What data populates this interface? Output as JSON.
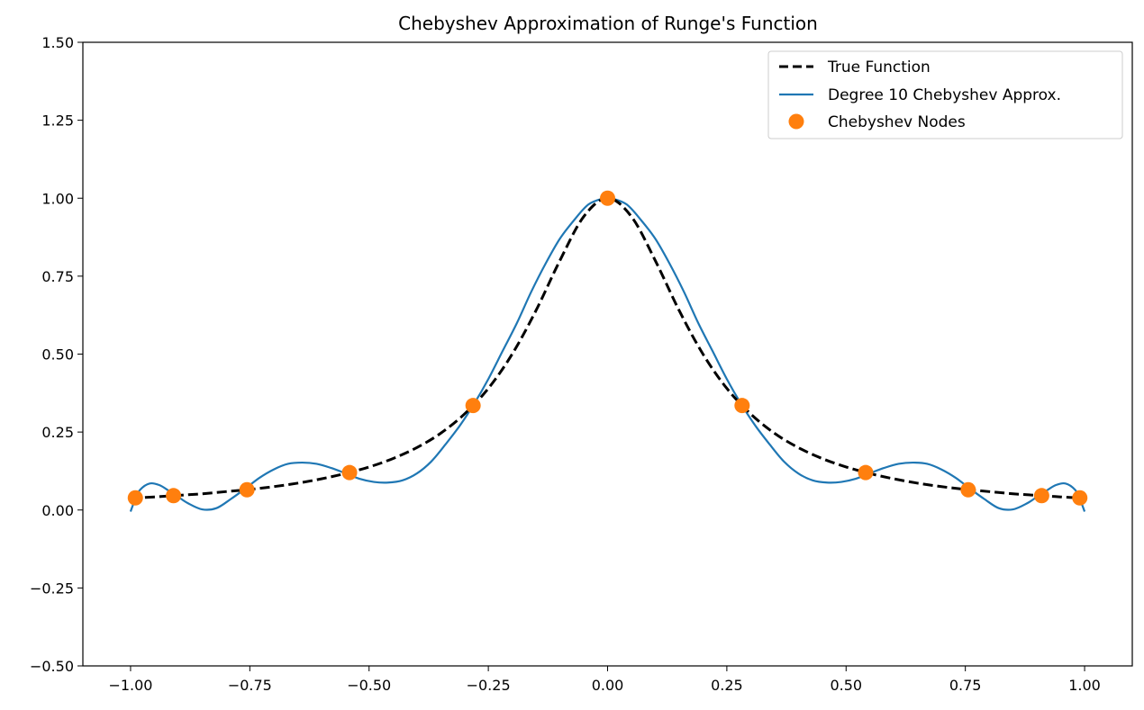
{
  "chart_data": {
    "type": "line",
    "title": "Chebyshev Approximation of Runge's Function",
    "xlabel": "",
    "ylabel": "",
    "xlim": [
      -1.1,
      1.1
    ],
    "ylim": [
      -0.5,
      1.5
    ],
    "xticks": [
      -1.0,
      -0.75,
      -0.5,
      -0.25,
      0.0,
      0.25,
      0.5,
      0.75,
      1.0
    ],
    "xtick_labels": [
      "−1.00",
      "−0.75",
      "−0.50",
      "−0.25",
      "0.00",
      "0.25",
      "0.50",
      "0.75",
      "1.00"
    ],
    "yticks": [
      -0.5,
      -0.25,
      0.0,
      0.25,
      0.5,
      0.75,
      1.0,
      1.25,
      1.5
    ],
    "ytick_labels": [
      "−0.50",
      "−0.25",
      "0.00",
      "0.25",
      "0.50",
      "0.75",
      "1.00",
      "1.25",
      "1.50"
    ],
    "grid": false,
    "legend_position": "top-right",
    "series": [
      {
        "name": "True Function",
        "kind": "line",
        "style": "dashed",
        "color": "#000000",
        "x": [
          -1.0,
          -0.95,
          -0.9,
          -0.85,
          -0.8,
          -0.75,
          -0.7,
          -0.65,
          -0.6,
          -0.55,
          -0.5,
          -0.45,
          -0.4,
          -0.35,
          -0.3,
          -0.25,
          -0.2,
          -0.15,
          -0.1,
          -0.05,
          0.0,
          0.05,
          0.1,
          0.15,
          0.2,
          0.25,
          0.3,
          0.35,
          0.4,
          0.45,
          0.5,
          0.55,
          0.6,
          0.65,
          0.7,
          0.75,
          0.8,
          0.85,
          0.9,
          0.95,
          1.0
        ],
        "y": [
          0.038,
          0.042,
          0.047,
          0.052,
          0.059,
          0.066,
          0.075,
          0.086,
          0.1,
          0.117,
          0.138,
          0.165,
          0.2,
          0.246,
          0.308,
          0.39,
          0.5,
          0.64,
          0.8,
          0.941,
          1.0,
          0.941,
          0.8,
          0.64,
          0.5,
          0.39,
          0.308,
          0.246,
          0.2,
          0.165,
          0.138,
          0.117,
          0.1,
          0.086,
          0.075,
          0.066,
          0.059,
          0.052,
          0.047,
          0.042,
          0.038
        ]
      },
      {
        "name": "Degree 10 Chebyshev Approx.",
        "kind": "line",
        "style": "solid",
        "color": "#1f77b4",
        "x": [
          -1.0,
          -0.99,
          -0.98,
          -0.96,
          -0.94,
          -0.92,
          -0.9,
          -0.88,
          -0.85,
          -0.82,
          -0.79,
          -0.76,
          -0.73,
          -0.7,
          -0.67,
          -0.64,
          -0.61,
          -0.58,
          -0.55,
          -0.52,
          -0.49,
          -0.46,
          -0.43,
          -0.4,
          -0.37,
          -0.34,
          -0.31,
          -0.28,
          -0.25,
          -0.22,
          -0.19,
          -0.16,
          -0.13,
          -0.1,
          -0.07,
          -0.04,
          -0.01,
          0.0,
          0.01,
          0.04,
          0.07,
          0.1,
          0.13,
          0.16,
          0.19,
          0.22,
          0.25,
          0.28,
          0.31,
          0.34,
          0.37,
          0.4,
          0.43,
          0.46,
          0.49,
          0.52,
          0.55,
          0.58,
          0.61,
          0.64,
          0.67,
          0.7,
          0.73,
          0.76,
          0.79,
          0.82,
          0.85,
          0.88,
          0.9,
          0.92,
          0.94,
          0.96,
          0.98,
          0.99,
          1.0
        ],
        "y": [
          -0.005,
          0.036,
          0.065,
          0.085,
          0.08,
          0.062,
          0.042,
          0.022,
          0.002,
          0.006,
          0.035,
          0.068,
          0.103,
          0.13,
          0.148,
          0.152,
          0.148,
          0.135,
          0.118,
          0.1,
          0.09,
          0.088,
          0.095,
          0.117,
          0.155,
          0.21,
          0.27,
          0.34,
          0.42,
          0.51,
          0.6,
          0.7,
          0.79,
          0.87,
          0.93,
          0.98,
          0.999,
          1.0,
          0.999,
          0.98,
          0.93,
          0.87,
          0.79,
          0.7,
          0.6,
          0.51,
          0.42,
          0.34,
          0.27,
          0.21,
          0.155,
          0.117,
          0.095,
          0.088,
          0.09,
          0.1,
          0.118,
          0.135,
          0.148,
          0.152,
          0.148,
          0.13,
          0.103,
          0.068,
          0.035,
          0.006,
          0.002,
          0.022,
          0.042,
          0.062,
          0.08,
          0.085,
          0.065,
          0.036,
          -0.005
        ]
      },
      {
        "name": "Chebyshev Nodes",
        "kind": "scatter",
        "color": "#ff7f0e",
        "x": [
          -0.99,
          -0.91,
          -0.756,
          -0.541,
          -0.282,
          0.0,
          0.282,
          0.541,
          0.756,
          0.91,
          0.99
        ],
        "y": [
          0.039,
          0.046,
          0.065,
          0.12,
          0.335,
          1.0,
          0.335,
          0.12,
          0.065,
          0.046,
          0.039
        ]
      }
    ]
  }
}
